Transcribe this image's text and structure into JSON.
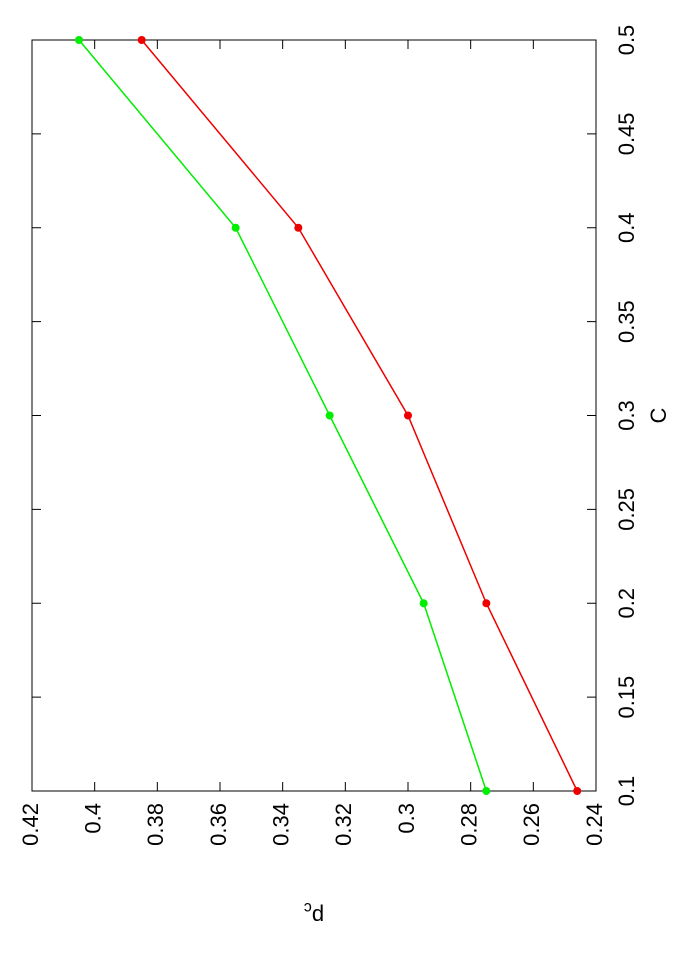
{
  "chart_data": {
    "type": "line",
    "xlabel": "C",
    "ylabel": {
      "base": "p",
      "sub": "c"
    },
    "x": [
      0.1,
      0.2,
      0.3,
      0.4,
      0.5
    ],
    "series": [
      {
        "color": "#ee0000",
        "values": [
          0.246,
          0.275,
          0.3,
          0.335,
          0.385
        ]
      },
      {
        "color": "#00ee00",
        "values": [
          0.275,
          0.295,
          0.325,
          0.355,
          0.405
        ]
      }
    ],
    "xlim": [
      0.1,
      0.5
    ],
    "xticks": [
      0.1,
      0.15,
      0.2,
      0.25,
      0.3,
      0.35,
      0.4,
      0.45,
      0.5
    ],
    "ylim": [
      0.24,
      0.42
    ],
    "yticks": [
      0.24,
      0.26,
      0.28,
      0.3,
      0.32,
      0.34,
      0.36,
      0.38,
      0.4,
      0.42
    ],
    "rotation": -90
  }
}
